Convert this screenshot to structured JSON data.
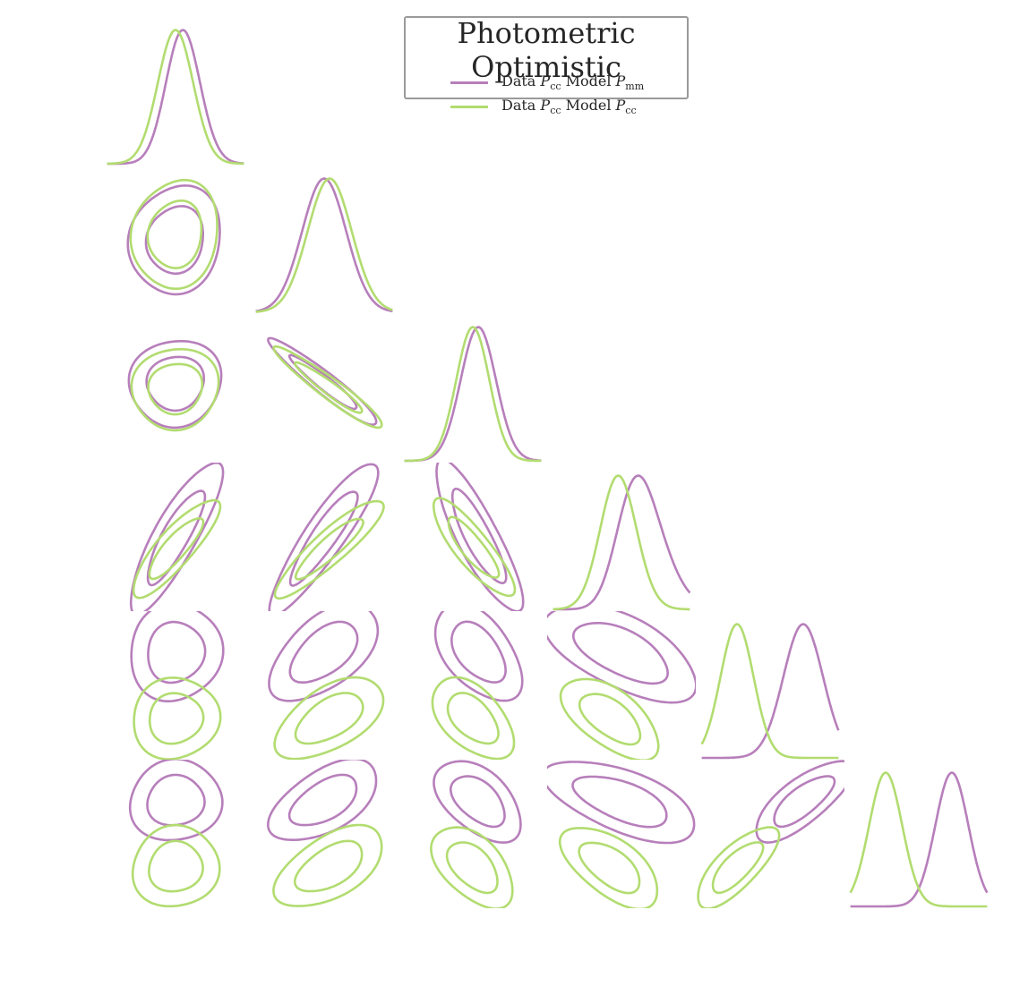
{
  "chart_data": {
    "type": "triangle-plot",
    "title": "Photometric Optimistic",
    "n_parameters": 6,
    "contour_levels": [
      "68%",
      "95%"
    ],
    "series": [
      {
        "name": "Data P_cc Model P_mm",
        "label_parts": [
          "Data ",
          "P",
          "cc",
          " Model ",
          "P",
          "mm"
        ],
        "color": "#b77fbb",
        "means": [
          0.0,
          0.0,
          0.05,
          0.0,
          0.3,
          0.3
        ],
        "sigmas": [
          0.17,
          0.2,
          0.16,
          0.28,
          0.18,
          0.15
        ],
        "skew": [
          0.6,
          0.0,
          0.0,
          1.6,
          0.0,
          0.0
        ]
      },
      {
        "name": "Data P_cc Model P_cc",
        "label_parts": [
          "Data ",
          "P",
          "cc",
          " Model ",
          "P",
          "cc"
        ],
        "color": "#b2dc70",
        "means": [
          0.0,
          0.05,
          0.0,
          -0.1,
          -0.3,
          -0.3
        ],
        "sigmas": [
          0.16,
          0.2,
          0.15,
          0.18,
          0.15,
          0.15
        ],
        "skew": [
          0.0,
          0.0,
          0.0,
          0.6,
          0.0,
          0.0
        ]
      }
    ],
    "correlations": [
      [
        1.0,
        0.1,
        0.05,
        0.85,
        0.05,
        0.05
      ],
      [
        0.1,
        1.0,
        -0.95,
        0.9,
        0.55,
        0.55
      ],
      [
        0.05,
        -0.95,
        1.0,
        -0.85,
        -0.5,
        -0.5
      ],
      [
        0.85,
        0.9,
        -0.85,
        1.0,
        -0.6,
        -0.6
      ],
      [
        0.05,
        0.55,
        -0.5,
        -0.6,
        1.0,
        0.75
      ],
      [
        0.05,
        0.55,
        -0.5,
        -0.6,
        0.75,
        1.0
      ]
    ],
    "grid": false,
    "legend_position": "top-right"
  }
}
